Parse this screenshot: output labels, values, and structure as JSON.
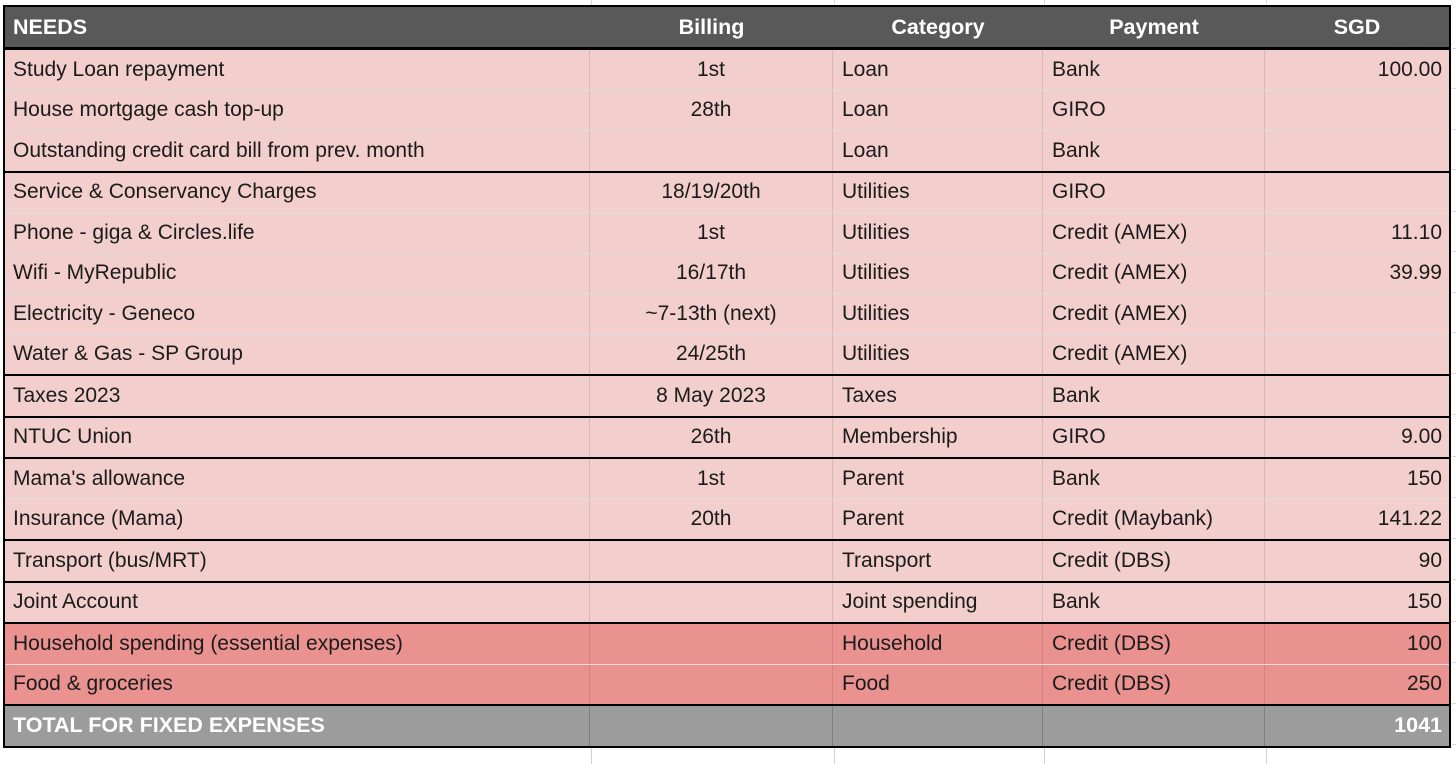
{
  "table": {
    "columns": [
      {
        "key": "needs",
        "label": "NEEDS",
        "align": "left"
      },
      {
        "key": "billing",
        "label": "Billing",
        "align": "center"
      },
      {
        "key": "category",
        "label": "Category",
        "align": "left"
      },
      {
        "key": "payment",
        "label": "Payment",
        "align": "left"
      },
      {
        "key": "sgd",
        "label": "SGD",
        "align": "right"
      }
    ],
    "rows": [
      {
        "needs": "Study Loan repayment",
        "billing": "1st",
        "category": "Loan",
        "payment": "Bank",
        "sgd": "100.00",
        "tone": "light",
        "separator": "none"
      },
      {
        "needs": "House mortgage cash top-up",
        "billing": "28th",
        "category": "Loan",
        "payment": "GIRO",
        "sgd": "",
        "tone": "light",
        "separator": "thin"
      },
      {
        "needs": "Outstanding credit card bill from prev. month",
        "billing": "",
        "category": "Loan",
        "payment": "Bank",
        "sgd": "",
        "tone": "light",
        "separator": "thin"
      },
      {
        "needs": "Service & Conservancy Charges",
        "billing": "18/19/20th",
        "category": "Utilities",
        "payment": "GIRO",
        "sgd": "",
        "tone": "light",
        "separator": "black"
      },
      {
        "needs": "Phone - giga & Circles.life",
        "billing": "1st",
        "category": "Utilities",
        "payment": "Credit (AMEX)",
        "sgd": "11.10",
        "tone": "light",
        "separator": "thin"
      },
      {
        "needs": "Wifi - MyRepublic",
        "billing": "16/17th",
        "category": "Utilities",
        "payment": "Credit (AMEX)",
        "sgd": "39.99",
        "tone": "light",
        "separator": "thin"
      },
      {
        "needs": "Electricity - Geneco",
        "billing": "~7-13th (next)",
        "category": "Utilities",
        "payment": "Credit (AMEX)",
        "sgd": "",
        "tone": "light",
        "separator": "thin"
      },
      {
        "needs": "Water & Gas - SP Group",
        "billing": "24/25th",
        "category": "Utilities",
        "payment": "Credit (AMEX)",
        "sgd": "",
        "tone": "light",
        "separator": "thin"
      },
      {
        "needs": "Taxes 2023",
        "billing": "8 May 2023",
        "category": "Taxes",
        "payment": "Bank",
        "sgd": "",
        "tone": "light",
        "separator": "black"
      },
      {
        "needs": "NTUC Union",
        "billing": "26th",
        "category": "Membership",
        "payment": "GIRO",
        "sgd": "9.00",
        "tone": "light",
        "separator": "black"
      },
      {
        "needs": "Mama's allowance",
        "billing": "1st",
        "category": "Parent",
        "payment": "Bank",
        "sgd": "150",
        "tone": "light",
        "separator": "black"
      },
      {
        "needs": "Insurance (Mama)",
        "billing": "20th",
        "category": "Parent",
        "payment": "Credit (Maybank)",
        "sgd": "141.22",
        "tone": "light",
        "separator": "thin"
      },
      {
        "needs": "Transport (bus/MRT)",
        "billing": "",
        "category": "Transport",
        "payment": "Credit (DBS)",
        "sgd": "90",
        "tone": "light",
        "separator": "black"
      },
      {
        "needs": "Joint Account",
        "billing": "",
        "category": "Joint spending",
        "payment": "Bank",
        "sgd": "150",
        "tone": "light",
        "separator": "black"
      },
      {
        "needs": "Household spending (essential expenses)",
        "billing": "",
        "category": "Household",
        "payment": "Credit (DBS)",
        "sgd": "100",
        "tone": "dark",
        "separator": "black"
      },
      {
        "needs": "Food & groceries",
        "billing": "",
        "category": "Food",
        "payment": "Credit (DBS)",
        "sgd": "250",
        "tone": "dark",
        "separator": "thin"
      }
    ],
    "total_row": {
      "label": "TOTAL FOR FIXED EXPENSES",
      "billing": "",
      "category": "",
      "payment": "",
      "sgd": "1041"
    }
  },
  "colors": {
    "header_bg": "#595959",
    "header_text": "#ffffff",
    "row_light_bg": "#f2cecd",
    "row_dark_bg": "#e99290",
    "total_bg": "#9c9c9c",
    "total_text": "#ffffff",
    "cell_text": "#1b1b1b",
    "border_black": "#000000"
  }
}
